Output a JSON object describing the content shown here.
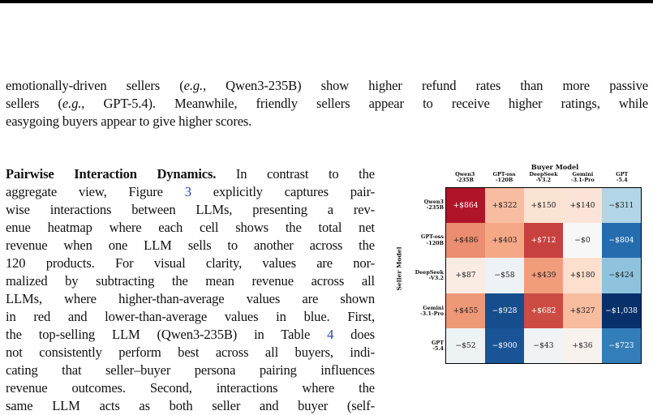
{
  "text": {
    "top_para": [
      {
        "segs": [
          [
            "t",
            "emotionally-driven sellers ("
          ],
          [
            "i",
            "e.g."
          ],
          [
            "t",
            ", Qwen3-235B) show higher refund rates than more passive"
          ]
        ]
      },
      {
        "segs": [
          [
            "t",
            "sellers ("
          ],
          [
            "i",
            "e.g."
          ],
          [
            "t",
            ", GPT-5.4). Meanwhile, friendly sellers appear to receive higher ratings, while"
          ]
        ]
      },
      {
        "segs": [
          [
            "t",
            "easygoing buyers appear to give higher scores."
          ]
        ],
        "last": true
      }
    ],
    "left_para": [
      {
        "segs": [
          [
            "b",
            "Pairwise Interaction Dynamics."
          ],
          [
            "t",
            "  In contrast to the"
          ]
        ]
      },
      {
        "segs": [
          [
            "t",
            "aggregate view, Figure "
          ],
          [
            "r",
            "3"
          ],
          [
            "t",
            " explicitly captures pair-"
          ]
        ]
      },
      {
        "segs": [
          [
            "t",
            "wise interactions between LLMs, presenting a rev-"
          ]
        ]
      },
      {
        "segs": [
          [
            "t",
            "enue heatmap where each cell shows the total net"
          ]
        ]
      },
      {
        "segs": [
          [
            "t",
            "revenue when one LLM sells to another across the"
          ]
        ]
      },
      {
        "segs": [
          [
            "t",
            "120 products.  For visual clarity, values are nor-"
          ]
        ]
      },
      {
        "segs": [
          [
            "t",
            "malized by subtracting the mean revenue across all"
          ]
        ]
      },
      {
        "segs": [
          [
            "t",
            "LLMs, where higher-than-average values are shown"
          ]
        ]
      },
      {
        "segs": [
          [
            "t",
            "in red and lower-than-average values in blue. First,"
          ]
        ]
      },
      {
        "segs": [
          [
            "t",
            "the top-selling LLM (Qwen3-235B) in Table "
          ],
          [
            "r",
            "4"
          ],
          [
            "t",
            " does"
          ]
        ]
      },
      {
        "segs": [
          [
            "t",
            "not consistently perform best across all buyers, indi-"
          ]
        ]
      },
      {
        "segs": [
          [
            "t",
            "cating that seller–buyer persona pairing influences"
          ]
        ]
      },
      {
        "segs": [
          [
            "t",
            "revenue outcomes.  Second, interactions where the"
          ]
        ]
      },
      {
        "segs": [
          [
            "t",
            "same  LLM  acts  as  both  seller  and  buyer  (self-"
          ]
        ]
      }
    ]
  },
  "chart_data": {
    "type": "heatmap",
    "title": "Buyer Model",
    "xlabel": "Buyer Model",
    "ylabel": "Seller Model",
    "columns": [
      "Qwen3\n-235B",
      "GPT-oss\n-120B",
      "DeepSeek\n-V3.2",
      "Gemini\n-3.1-Pro",
      "GPT\n-5.4"
    ],
    "rows": [
      "Qwen3\n-235B",
      "GPT-oss\n-120B",
      "DeepSeek\n-V3.2",
      "Gemini\n-3.1-Pro",
      "GPT\n-5.4"
    ],
    "values": [
      [
        864,
        322,
        150,
        140,
        -311
      ],
      [
        486,
        403,
        712,
        0,
        -804
      ],
      [
        87,
        -58,
        439,
        180,
        -424
      ],
      [
        455,
        -928,
        682,
        327,
        -1038
      ],
      [
        -52,
        -900,
        -43,
        36,
        -723
      ]
    ],
    "labels": [
      [
        "+$864",
        "+$322",
        "+$150",
        "+$140",
        "−$311"
      ],
      [
        "+$486",
        "+$403",
        "+$712",
        "−$0",
        "−$804"
      ],
      [
        "+$87",
        "−$58",
        "+$439",
        "+$180",
        "−$424"
      ],
      [
        "+$455",
        "−$928",
        "+$682",
        "+$327",
        "−$1,038"
      ],
      [
        "−$52",
        "−$900",
        "−$43",
        "+$36",
        "−$723"
      ]
    ],
    "colormap": {
      "negative": "#08306b",
      "neutral": "#f7f7f7",
      "positive": "#a3001e"
    }
  }
}
